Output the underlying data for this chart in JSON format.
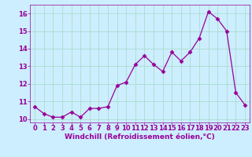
{
  "x": [
    0,
    1,
    2,
    3,
    4,
    5,
    6,
    7,
    8,
    9,
    10,
    11,
    12,
    13,
    14,
    15,
    16,
    17,
    18,
    19,
    20,
    21,
    22,
    23
  ],
  "y": [
    10.7,
    10.3,
    10.1,
    10.1,
    10.4,
    10.1,
    10.6,
    10.6,
    10.7,
    11.9,
    12.1,
    13.1,
    13.6,
    13.1,
    12.7,
    13.8,
    13.3,
    13.8,
    14.6,
    16.1,
    15.7,
    15.0,
    11.5,
    10.8
  ],
  "line_color": "#990099",
  "marker": "D",
  "marker_size": 2.5,
  "bg_color": "#cceeff",
  "grid_color": "#aaddcc",
  "xlabel": "Windchill (Refroidissement éolien,°C)",
  "xlabel_color": "#990099",
  "xlabel_fontsize": 6.5,
  "tick_color": "#990099",
  "tick_fontsize": 6.0,
  "ylim": [
    9.8,
    16.5
  ],
  "xlim": [
    -0.5,
    23.5
  ],
  "yticks": [
    10,
    11,
    12,
    13,
    14,
    15,
    16
  ],
  "xticks": [
    0,
    1,
    2,
    3,
    4,
    5,
    6,
    7,
    8,
    9,
    10,
    11,
    12,
    13,
    14,
    15,
    16,
    17,
    18,
    19,
    20,
    21,
    22,
    23
  ]
}
